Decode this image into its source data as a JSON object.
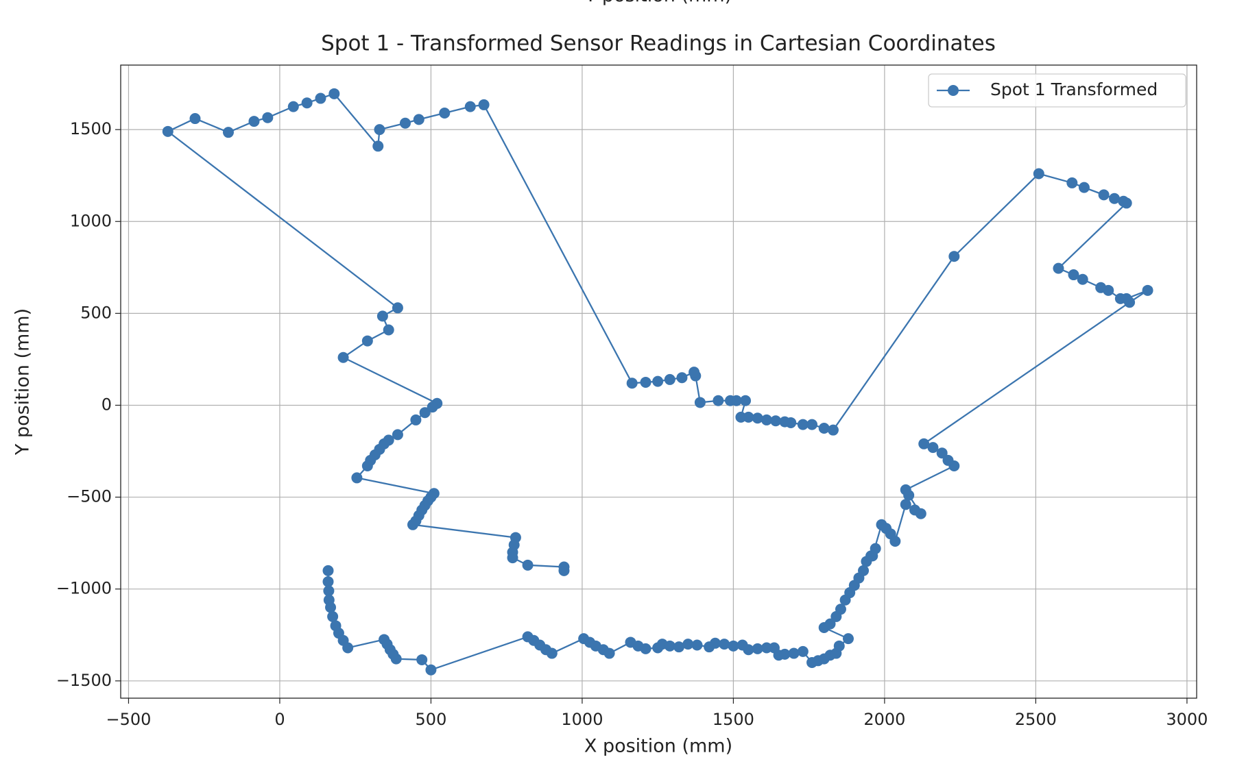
{
  "clipped_label": "Y position (mm)",
  "chart_data": {
    "type": "line",
    "title": "Spot 1 - Transformed Sensor Readings in Cartesian Coordinates",
    "x_label": "X position (mm)",
    "y_label": "Y position (mm)",
    "xlim": [
      -526,
      3032
    ],
    "ylim": [
      -1594,
      1851
    ],
    "xticks": [
      {
        "value": -500,
        "label": "−500"
      },
      0,
      500,
      1000,
      1500,
      2000,
      2500,
      3000
    ],
    "yticks": [
      {
        "value": -1500,
        "label": "−1500"
      },
      {
        "value": -1000,
        "label": "−1000"
      },
      {
        "value": -500,
        "label": "−500"
      },
      0,
      500,
      1000,
      1500
    ],
    "grid": true,
    "legend": "upper right",
    "x": [
      160,
      160,
      162,
      163,
      168,
      175,
      185,
      195,
      210,
      225,
      345,
      355,
      365,
      375,
      385,
      470,
      500,
      820,
      840,
      860,
      880,
      900,
      1005,
      1025,
      1045,
      1070,
      1090,
      1160,
      1185,
      1210,
      1250,
      1265,
      1290,
      1320,
      1350,
      1380,
      1420,
      1440,
      1470,
      1500,
      1530,
      1550,
      1580,
      1610,
      1635,
      1650,
      1670,
      1700,
      1730,
      1760,
      1780,
      1800,
      1820,
      1840,
      1850,
      1880,
      1800,
      1820,
      1840,
      1855,
      1870,
      1885,
      1900,
      1915,
      1930,
      1940,
      1955,
      1970,
      1960,
      1990,
      2005,
      2020,
      2035,
      2070,
      2100,
      2120,
      2080,
      2070,
      2230,
      2210,
      2190,
      2160,
      2130,
      2810,
      2870,
      2800,
      2780,
      2740,
      2715,
      2655,
      2625,
      2575,
      2800,
      2790,
      2760,
      2725,
      2660,
      2620,
      2510,
      2230,
      1830,
      1800,
      1760,
      1730,
      1690,
      1670,
      1640,
      1610,
      1580,
      1550,
      1525,
      1540,
      1510,
      1490,
      1450,
      1390,
      1375,
      1370,
      1330,
      1290,
      1250,
      1210,
      1165,
      675,
      630,
      545,
      460,
      415,
      330,
      325,
      180,
      135,
      90,
      45,
      -40,
      -85,
      -170,
      -280,
      -370,
      390,
      340,
      360,
      290,
      210,
      520,
      505,
      480,
      450,
      390,
      360,
      345,
      330,
      315,
      300,
      290,
      255,
      510,
      500,
      490,
      480,
      470,
      460,
      450,
      440,
      780,
      775,
      770,
      770,
      820,
      940,
      940
    ],
    "series": [
      {
        "name": "Spot 1 Transformed",
        "color": "#3b75af",
        "values": [
          -900,
          -960,
          -1010,
          -1060,
          -1100,
          -1150,
          -1200,
          -1240,
          -1280,
          -1320,
          -1275,
          -1300,
          -1330,
          -1355,
          -1380,
          -1385,
          -1440,
          -1260,
          -1280,
          -1305,
          -1330,
          -1350,
          -1270,
          -1290,
          -1310,
          -1330,
          -1350,
          -1290,
          -1310,
          -1325,
          -1320,
          -1300,
          -1310,
          -1315,
          -1300,
          -1305,
          -1315,
          -1295,
          -1300,
          -1310,
          -1305,
          -1330,
          -1325,
          -1320,
          -1320,
          -1360,
          -1355,
          -1350,
          -1340,
          -1400,
          -1390,
          -1380,
          -1360,
          -1350,
          -1310,
          -1270,
          -1210,
          -1190,
          -1150,
          -1110,
          -1060,
          -1020,
          -980,
          -940,
          -900,
          -850,
          -820,
          -780,
          -820,
          -650,
          -670,
          -700,
          -740,
          -540,
          -570,
          -590,
          -490,
          -460,
          -330,
          -300,
          -260,
          -230,
          -210,
          560,
          625,
          580,
          580,
          625,
          640,
          685,
          710,
          745,
          1100,
          1110,
          1125,
          1145,
          1185,
          1210,
          1260,
          810,
          -135,
          -125,
          -105,
          -105,
          -95,
          -90,
          -85,
          -80,
          -70,
          -65,
          -65,
          25,
          25,
          25,
          25,
          15,
          160,
          180,
          150,
          140,
          130,
          125,
          120,
          1635,
          1625,
          1590,
          1555,
          1535,
          1500,
          1410,
          1695,
          1670,
          1645,
          1625,
          1565,
          1545,
          1485,
          1560,
          1490,
          530,
          485,
          410,
          350,
          260,
          10,
          -10,
          -40,
          -80,
          -160,
          -190,
          -210,
          -240,
          -270,
          -300,
          -330,
          -395,
          -480,
          -500,
          -520,
          -545,
          -570,
          -600,
          -630,
          -650,
          -720,
          -760,
          -800,
          -830,
          -870,
          -880,
          -900
        ]
      }
    ]
  }
}
